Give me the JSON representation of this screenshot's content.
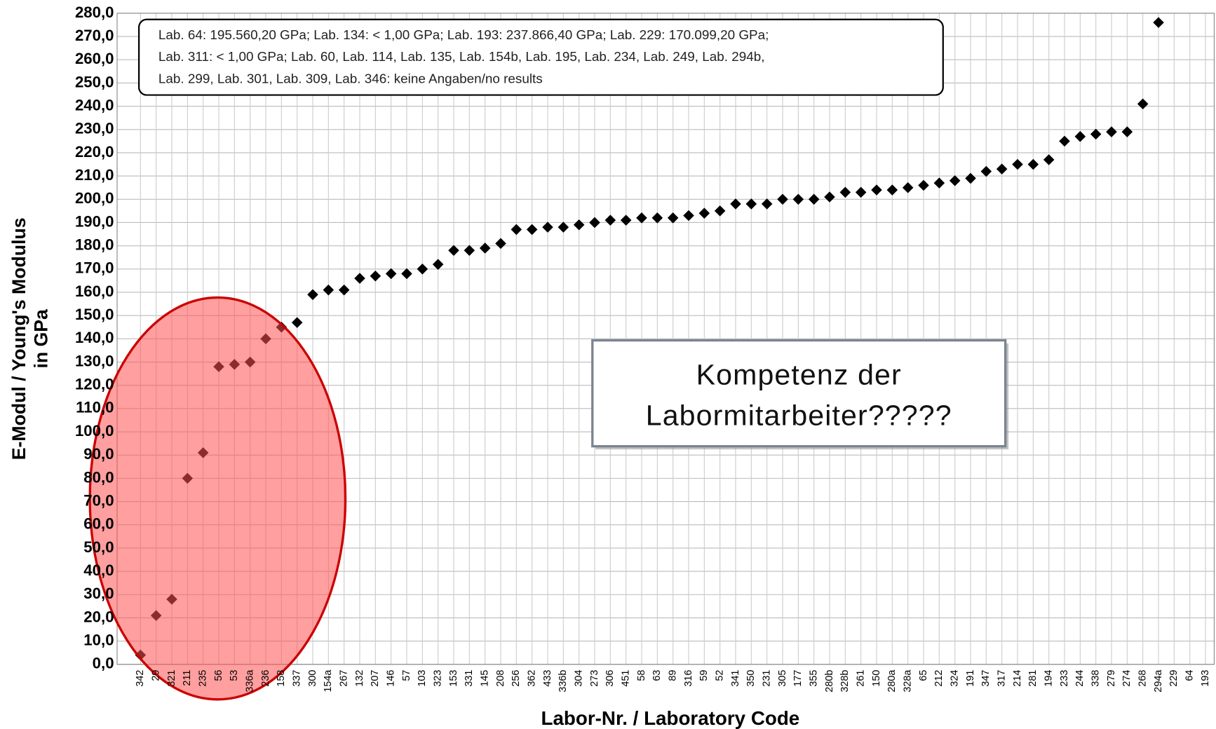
{
  "chart_data": {
    "type": "scatter",
    "y_label_lines": [
      "E-Modul / Young's Modulus",
      "in GPa"
    ],
    "x_label": "Labor-Nr. / Laboratory Code",
    "note_lines": [
      "Lab. 64: 195.560,20 GPa; Lab. 134: < 1,00 GPa; Lab. 193: 237.866,40 GPa; Lab. 229: 170.099,20 GPa;",
      "Lab. 311: < 1,00 GPa; Lab. 60, Lab. 114, Lab. 135, Lab. 154b, Lab. 195, Lab. 234, Lab. 249, Lab. 294b,",
      "Lab. 299, Lab. 301, Lab. 309, Lab. 346: keine Angaben/no results"
    ],
    "callout_lines": [
      "Kompetenz der",
      "Labormitarbeiter?????"
    ],
    "categories": [
      "342",
      "29",
      "321",
      "211",
      "235",
      "56",
      "53",
      "336a",
      "236",
      "158",
      "337",
      "300",
      "154a",
      "267",
      "132",
      "207",
      "146",
      "57",
      "103",
      "323",
      "153",
      "331",
      "145",
      "208",
      "256",
      "362",
      "433",
      "336b",
      "304",
      "273",
      "306",
      "451",
      "58",
      "63",
      "89",
      "316",
      "59",
      "52",
      "341",
      "350",
      "231",
      "305",
      "177",
      "355",
      "280b",
      "328b",
      "261",
      "150",
      "280a",
      "328a",
      "65",
      "212",
      "324",
      "191",
      "347",
      "317",
      "214",
      "281",
      "194",
      "233",
      "244",
      "338",
      "279",
      "274",
      "268",
      "294a",
      "229",
      "64",
      "193"
    ],
    "values": [
      4,
      21,
      28,
      80,
      91,
      128,
      129,
      130,
      140,
      145,
      147,
      159,
      161,
      161,
      166,
      167,
      168,
      168,
      170,
      172,
      178,
      178,
      179,
      181,
      187,
      187,
      188,
      188,
      189,
      190,
      191,
      191,
      192,
      192,
      192,
      193,
      194,
      195,
      198,
      198,
      198,
      200,
      200,
      200,
      201,
      203,
      203,
      204,
      204,
      205,
      206,
      207,
      208,
      209,
      212,
      213,
      215,
      215,
      217,
      225,
      227,
      228,
      229,
      229,
      241,
      276,
      null,
      null,
      null
    ],
    "color": "#000000",
    "ylim": [
      0,
      280
    ],
    "yticks": [
      {
        "value": 0,
        "label": "0,0"
      },
      {
        "value": 10,
        "label": "10,0"
      },
      {
        "value": 20,
        "label": "20,0"
      },
      {
        "value": 30,
        "label": "30,0"
      },
      {
        "value": 40,
        "label": "40,0"
      },
      {
        "value": 50,
        "label": "50,0"
      },
      {
        "value": 60,
        "label": "60,0"
      },
      {
        "value": 70,
        "label": "70,0"
      },
      {
        "value": 80,
        "label": "80,0"
      },
      {
        "value": 90,
        "label": "90,0"
      },
      {
        "value": 100,
        "label": "100,0"
      },
      {
        "value": 110,
        "label": "110,0"
      },
      {
        "value": 120,
        "label": "120,0"
      },
      {
        "value": 130,
        "label": "130,0"
      },
      {
        "value": 140,
        "label": "140,0"
      },
      {
        "value": 150,
        "label": "150,0"
      },
      {
        "value": 160,
        "label": "160,0"
      },
      {
        "value": 170,
        "label": "170,0"
      },
      {
        "value": 180,
        "label": "180,0"
      },
      {
        "value": 190,
        "label": "190,0"
      },
      {
        "value": 200,
        "label": "200,0"
      },
      {
        "value": 210,
        "label": "210,0"
      },
      {
        "value": 220,
        "label": "220,0"
      },
      {
        "value": 230,
        "label": "230,0"
      },
      {
        "value": 240,
        "label": "240,0"
      },
      {
        "value": 250,
        "label": "250,0"
      },
      {
        "value": 260,
        "label": "260,0"
      },
      {
        "value": 270,
        "label": "270,0"
      },
      {
        "value": 280,
        "label": "280,0"
      }
    ],
    "grid": true
  }
}
